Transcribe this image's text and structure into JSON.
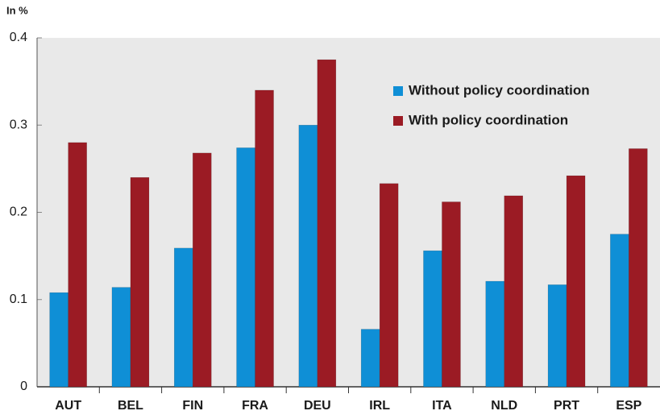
{
  "chart_data": {
    "type": "bar",
    "y_label": "In %",
    "categories": [
      "AUT",
      "BEL",
      "FIN",
      "FRA",
      "DEU",
      "IRL",
      "ITA",
      "NLD",
      "PRT",
      "ESP"
    ],
    "series": [
      {
        "name": "Without policy coordination",
        "color": "#0f8fd6",
        "values": [
          0.108,
          0.114,
          0.159,
          0.274,
          0.3,
          0.066,
          0.156,
          0.121,
          0.117,
          0.175
        ]
      },
      {
        "name": "With policy coordination",
        "color": "#9b1b24",
        "values": [
          0.28,
          0.24,
          0.268,
          0.34,
          0.375,
          0.233,
          0.212,
          0.219,
          0.242,
          0.273
        ]
      }
    ],
    "ylim": [
      0,
      0.4
    ],
    "yticks": [
      0,
      0.1,
      0.2,
      0.3,
      0.4
    ],
    "grid": false,
    "legend": "upper right"
  }
}
